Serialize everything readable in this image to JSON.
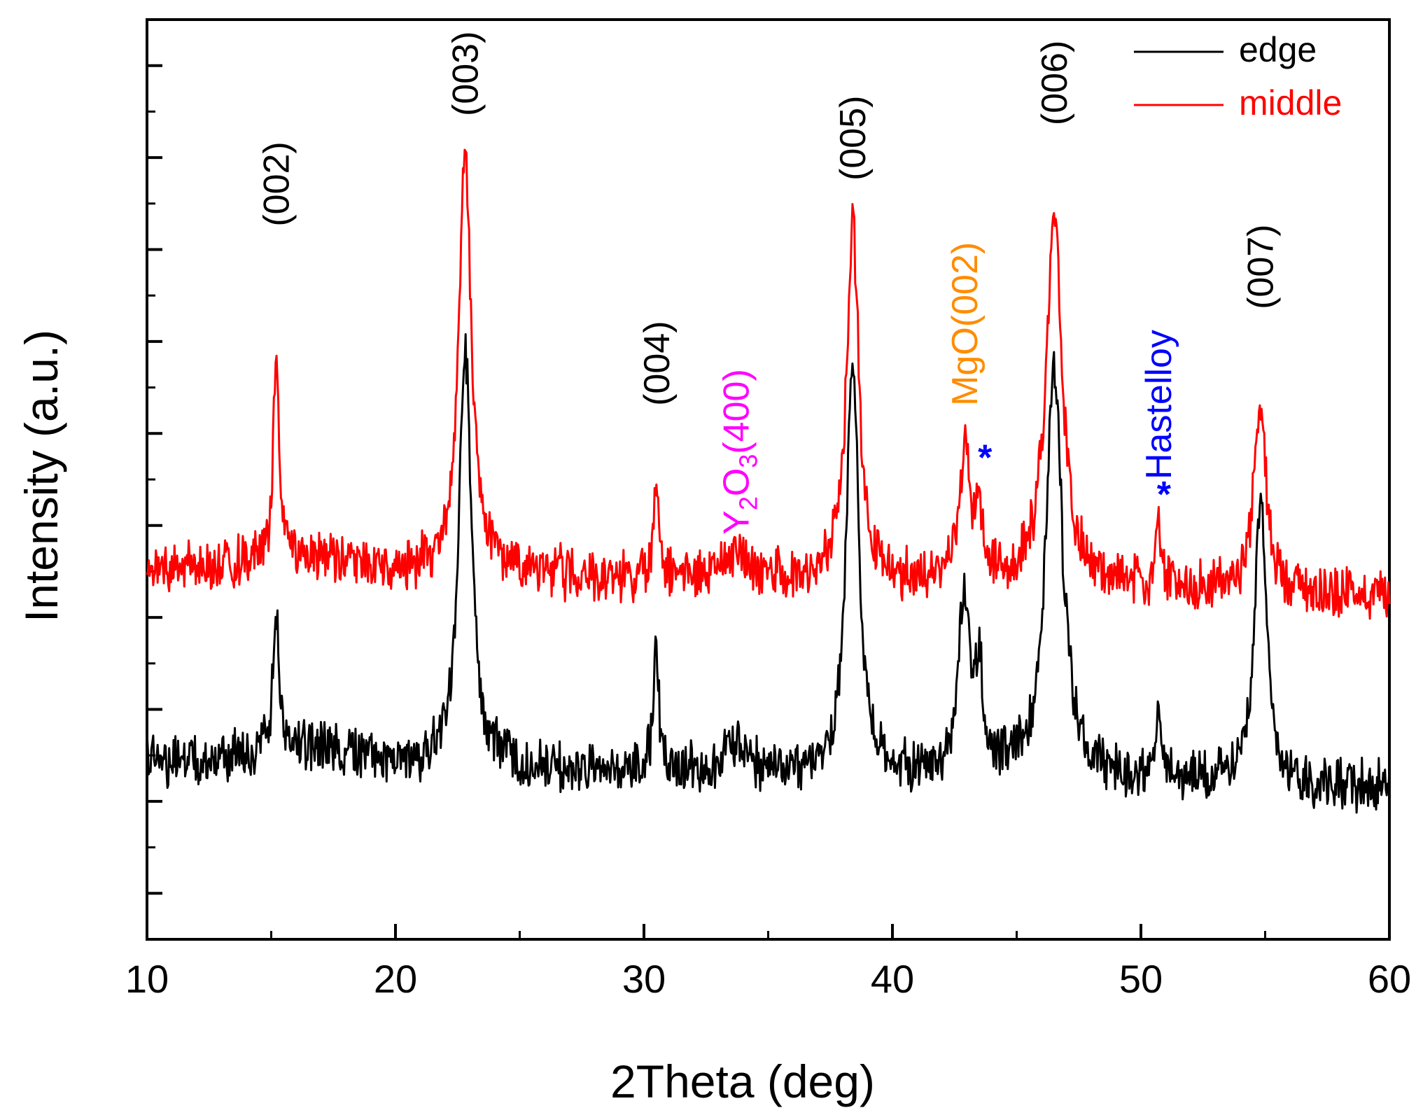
{
  "chart_data": {
    "type": "line",
    "xlabel": "2Theta (deg)",
    "ylabel": "Intensity (a.u.)",
    "xlim": [
      10,
      60
    ],
    "ylim": [
      0,
      100
    ],
    "x_ticks": [
      "10",
      "20",
      "30",
      "40",
      "50",
      "60"
    ],
    "y_tick_labels_shown": false,
    "legend_position": "top-right",
    "series": [
      {
        "name": "edge",
        "color": "#000000",
        "baseline": 19.5,
        "noise": 2.2,
        "peaks": [
          {
            "x": 15.2,
            "height": 16,
            "width": 0.14
          },
          {
            "x": 22.8,
            "height": 46,
            "width": 0.3
          },
          {
            "x": 30.5,
            "height": 12.5,
            "width": 0.14
          },
          {
            "x": 33.7,
            "height": 3.5,
            "width": 0.45
          },
          {
            "x": 38.4,
            "height": 45,
            "width": 0.3
          },
          {
            "x": 42.9,
            "height": 19,
            "width": 0.3
          },
          {
            "x": 43.5,
            "height": 11,
            "width": 0.14
          },
          {
            "x": 46.5,
            "height": 45,
            "width": 0.4
          },
          {
            "x": 50.7,
            "height": 9,
            "width": 0.12
          },
          {
            "x": 54.8,
            "height": 31,
            "width": 0.3
          }
        ]
      },
      {
        "name": "middle",
        "color": "#ff0000",
        "baseline": 40.5,
        "noise": 2.2,
        "peaks": [
          {
            "x": 15.2,
            "height": 22,
            "width": 0.14
          },
          {
            "x": 22.8,
            "height": 46,
            "width": 0.3
          },
          {
            "x": 30.5,
            "height": 10.5,
            "width": 0.14
          },
          {
            "x": 33.7,
            "height": 3.0,
            "width": 0.45
          },
          {
            "x": 38.4,
            "height": 39,
            "width": 0.3
          },
          {
            "x": 42.9,
            "height": 13.5,
            "width": 0.3
          },
          {
            "x": 43.5,
            "height": 7,
            "width": 0.14
          },
          {
            "x": 46.5,
            "height": 40,
            "width": 0.4
          },
          {
            "x": 50.7,
            "height": 7,
            "width": 0.12
          },
          {
            "x": 54.8,
            "height": 20,
            "width": 0.3
          }
        ]
      }
    ],
    "annotations": [
      {
        "name": "label-002",
        "text": "(002)",
        "x": 15.2,
        "y": 77.5,
        "color": "#000000"
      },
      {
        "name": "label-003",
        "text": "(003)",
        "x": 22.8,
        "y": 89.5,
        "color": "#000000"
      },
      {
        "name": "label-004",
        "text": "(004)",
        "x": 30.5,
        "y": 58,
        "color": "#000000"
      },
      {
        "name": "label-005",
        "text": "(005)",
        "x": 38.4,
        "y": 82.5,
        "color": "#000000"
      },
      {
        "name": "label-006",
        "text": "(006)",
        "x": 46.5,
        "y": 88.5,
        "color": "#000000"
      },
      {
        "name": "label-007",
        "text": "(007)",
        "x": 54.8,
        "y": 68.5,
        "color": "#000000"
      }
    ],
    "y2o3_label": {
      "prefix": "Y",
      "sub1": "2",
      "mid": "O",
      "sub2": "3",
      "suffix": "(400)",
      "x": 33.7,
      "y": 44,
      "color": "#ff00ff"
    },
    "mgo_label": {
      "text": "MgO(002)",
      "x": 42.9,
      "y": 58,
      "color": "#ff8c00"
    },
    "hastelloy_label": {
      "text": "Hastelloy",
      "x": 50.7,
      "y": 50,
      "color": "#0000ff"
    },
    "star_marker": {
      "text": "*",
      "color": "#0000ff",
      "positions": [
        {
          "x": 43.5,
          "y": 53
        },
        {
          "x": 50.7,
          "y": 49
        }
      ]
    },
    "legend": [
      {
        "label": "edge",
        "color": "#000000"
      },
      {
        "label": "middle",
        "color": "#ff0000"
      }
    ]
  }
}
